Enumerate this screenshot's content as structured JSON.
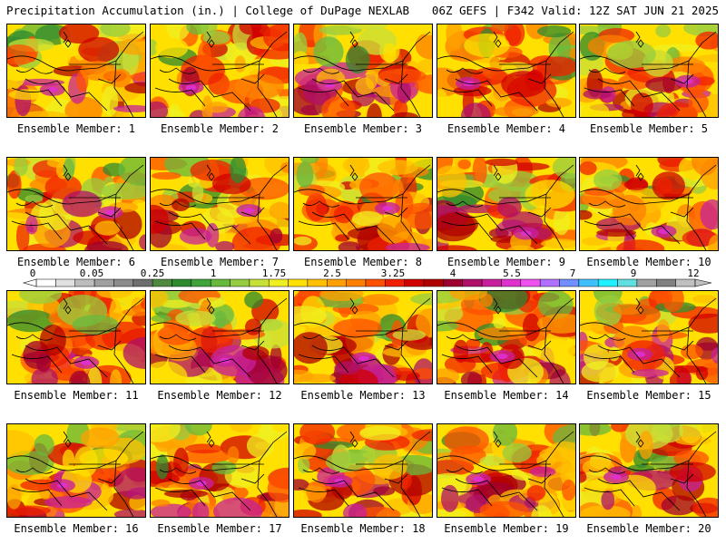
{
  "header": {
    "title_left": "Precipitation Accumulation (in.) | College of DuPage NEXLAB",
    "title_right": "06Z GEFS | F342 Valid: 12Z SAT JUN 21 2025"
  },
  "panels": [
    {
      "label": "Ensemble Member: 1"
    },
    {
      "label": "Ensemble Member: 2"
    },
    {
      "label": "Ensemble Member: 3"
    },
    {
      "label": "Ensemble Member: 4"
    },
    {
      "label": "Ensemble Member: 5"
    },
    {
      "label": "Ensemble Member: 6"
    },
    {
      "label": "Ensemble Member: 7"
    },
    {
      "label": "Ensemble Member: 8"
    },
    {
      "label": "Ensemble Member: 9"
    },
    {
      "label": "Ensemble Member: 10"
    },
    {
      "label": "Ensemble Member: 11"
    },
    {
      "label": "Ensemble Member: 12"
    },
    {
      "label": "Ensemble Member: 13"
    },
    {
      "label": "Ensemble Member: 14"
    },
    {
      "label": "Ensemble Member: 15"
    },
    {
      "label": "Ensemble Member: 16"
    },
    {
      "label": "Ensemble Member: 17"
    },
    {
      "label": "Ensemble Member: 18"
    },
    {
      "label": "Ensemble Member: 19"
    },
    {
      "label": "Ensemble Member: 20"
    }
  ],
  "color_scale": {
    "tick_labels": [
      "0",
      "0.05",
      "0.25",
      "1",
      "1.75",
      "2.5",
      "3.25",
      "4",
      "5.5",
      "7",
      "9",
      "12"
    ],
    "colors": [
      "#ffffff",
      "#e0e0e0",
      "#bdbdbd",
      "#a0a0a0",
      "#8c8c8c",
      "#6e6e6e",
      "#4e8a3e",
      "#2f8a2f",
      "#3fa33a",
      "#67b83f",
      "#96cc3f",
      "#c8e03a",
      "#f0f020",
      "#ffe000",
      "#ffc000",
      "#ffa000",
      "#ff8000",
      "#ff5000",
      "#f02000",
      "#d00000",
      "#b00000",
      "#a00030",
      "#b0106a",
      "#c8209a",
      "#e030d0",
      "#f050f0",
      "#b070ff",
      "#7090ff",
      "#40c0ff",
      "#20f0ff",
      "#60e0e0",
      "#a0a0a0",
      "#808080",
      "#c0c0c0"
    ]
  }
}
